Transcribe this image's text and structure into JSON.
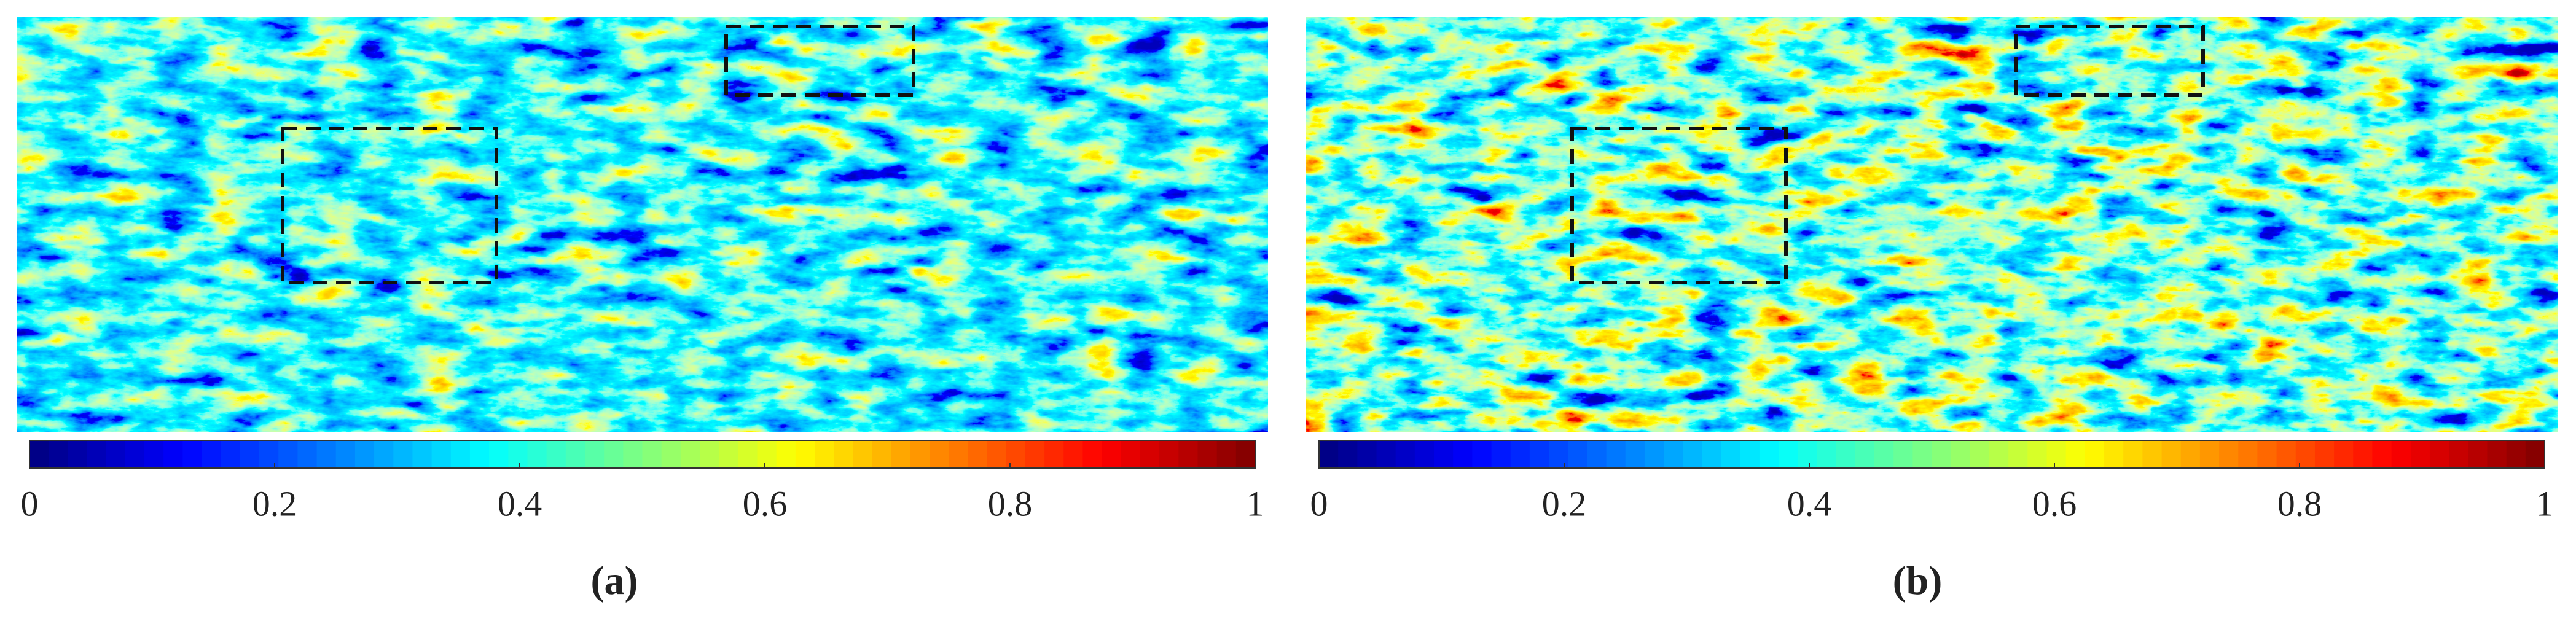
{
  "chart_data": [
    {
      "type": "colorbar",
      "caption": "(a)",
      "colormap": "jet",
      "clim": [
        0,
        1
      ],
      "ticks": [
        0,
        0.2,
        0.4,
        0.6,
        0.8,
        1
      ]
    },
    {
      "type": "colorbar",
      "caption": "(b)",
      "colormap": "jet",
      "clim": [
        0,
        1
      ],
      "ticks": [
        0,
        0.2,
        0.4,
        0.6,
        0.8,
        1
      ]
    }
  ]
}
